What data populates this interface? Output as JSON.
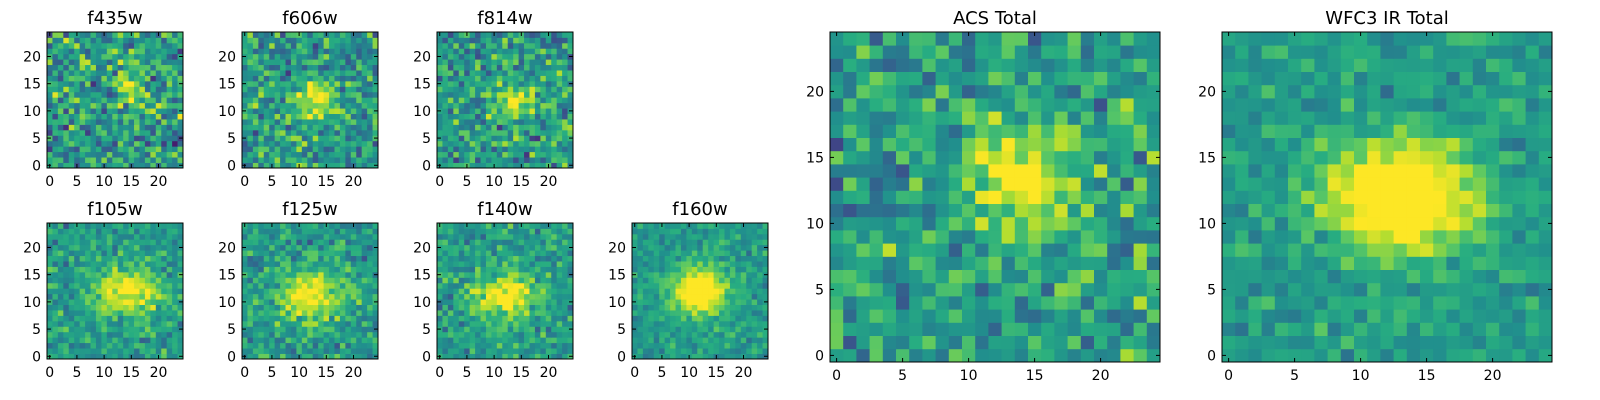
{
  "colormap": [
    "#440154",
    "#472c7a",
    "#3b518b",
    "#2c718e",
    "#21908d",
    "#27ad81",
    "#5cc863",
    "#aadc32",
    "#fde725"
  ],
  "chart_data": [
    {
      "type": "heatmap",
      "title": "f435w",
      "grid_size": 25,
      "xlim": [
        0,
        24
      ],
      "ylim": [
        0,
        24
      ],
      "xticks": [
        0,
        5,
        10,
        15,
        20
      ],
      "yticks": [
        0,
        5,
        10,
        15,
        20
      ],
      "peak": [
        15,
        14
      ],
      "sigma": [
        2.0,
        4.0
      ],
      "amplitude": 0.25,
      "noise": 0.55,
      "seed": 11
    },
    {
      "type": "heatmap",
      "title": "f606w",
      "grid_size": 25,
      "xlim": [
        0,
        24
      ],
      "ylim": [
        0,
        24
      ],
      "xticks": [
        0,
        5,
        10,
        15,
        20
      ],
      "yticks": [
        0,
        5,
        10,
        15,
        20
      ],
      "peak": [
        13,
        12
      ],
      "sigma": [
        2.5,
        2.5
      ],
      "amplitude": 0.45,
      "noise": 0.5,
      "seed": 23
    },
    {
      "type": "heatmap",
      "title": "f814w",
      "grid_size": 25,
      "xlim": [
        0,
        24
      ],
      "ylim": [
        0,
        24
      ],
      "xticks": [
        0,
        5,
        10,
        15,
        20
      ],
      "yticks": [
        0,
        5,
        10,
        15,
        20
      ],
      "peak": [
        14,
        12
      ],
      "sigma": [
        2.5,
        2.0
      ],
      "amplitude": 0.45,
      "noise": 0.5,
      "seed": 37
    },
    {
      "type": "heatmap",
      "title": "f105w",
      "grid_size": 25,
      "xlim": [
        0,
        24
      ],
      "ylim": [
        0,
        24
      ],
      "xticks": [
        0,
        5,
        10,
        15,
        20
      ],
      "yticks": [
        0,
        5,
        10,
        15,
        20
      ],
      "peak": [
        14,
        12
      ],
      "sigma": [
        4.0,
        3.0
      ],
      "amplitude": 0.5,
      "noise": 0.35,
      "seed": 41
    },
    {
      "type": "heatmap",
      "title": "f125w",
      "grid_size": 25,
      "xlim": [
        0,
        24
      ],
      "ylim": [
        0,
        24
      ],
      "xticks": [
        0,
        5,
        10,
        15,
        20
      ],
      "yticks": [
        0,
        5,
        10,
        15,
        20
      ],
      "peak": [
        12,
        11
      ],
      "sigma": [
        4.0,
        3.0
      ],
      "amplitude": 0.5,
      "noise": 0.35,
      "seed": 53
    },
    {
      "type": "heatmap",
      "title": "f140w",
      "grid_size": 25,
      "xlim": [
        0,
        24
      ],
      "ylim": [
        0,
        24
      ],
      "xticks": [
        0,
        5,
        10,
        15,
        20
      ],
      "yticks": [
        0,
        5,
        10,
        15,
        20
      ],
      "peak": [
        12,
        11
      ],
      "sigma": [
        4.0,
        3.0
      ],
      "amplitude": 0.5,
      "noise": 0.35,
      "seed": 67
    },
    {
      "type": "heatmap",
      "title": "f160w",
      "grid_size": 25,
      "xlim": [
        0,
        24
      ],
      "ylim": [
        0,
        24
      ],
      "xticks": [
        0,
        5,
        10,
        15,
        20
      ],
      "yticks": [
        0,
        5,
        10,
        15,
        20
      ],
      "peak": [
        12,
        12
      ],
      "sigma": [
        3.5,
        3.0
      ],
      "amplitude": 0.65,
      "noise": 0.25,
      "seed": 79
    },
    {
      "type": "heatmap",
      "title": "ACS Total",
      "grid_size": 25,
      "xlim": [
        0,
        24
      ],
      "ylim": [
        0,
        24
      ],
      "xticks": [
        0,
        5,
        10,
        15,
        20
      ],
      "yticks": [
        0,
        5,
        10,
        15,
        20
      ],
      "peak": [
        14,
        13
      ],
      "sigma": [
        3.0,
        3.0
      ],
      "amplitude": 0.5,
      "noise": 0.45,
      "seed": 83
    },
    {
      "type": "heatmap",
      "title": "WFC3 IR Total",
      "grid_size": 25,
      "xlim": [
        0,
        24
      ],
      "ylim": [
        0,
        24
      ],
      "xticks": [
        0,
        5,
        10,
        15,
        20
      ],
      "yticks": [
        0,
        5,
        10,
        15,
        20
      ],
      "peak": [
        13,
        12
      ],
      "sigma": [
        4.0,
        3.0
      ],
      "amplitude": 0.7,
      "noise": 0.25,
      "seed": 97
    }
  ]
}
